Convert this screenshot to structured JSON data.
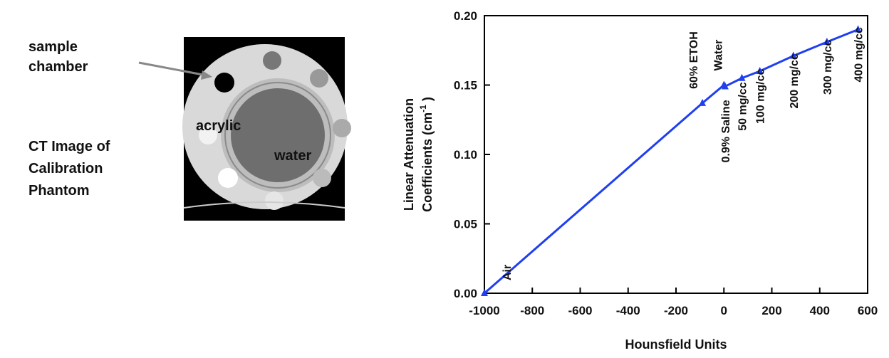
{
  "figure": {
    "callout": [
      "sample",
      "chamber"
    ],
    "caption": [
      "CT Image of",
      "Calibration",
      "Phantom"
    ],
    "image_labels": [
      "acrylic",
      "water"
    ]
  },
  "chart_data": {
    "type": "line",
    "xlabel": "Hounsfield Units",
    "ylabel": [
      "Linear Attenuation",
      "Coefficients (cm"
    ],
    "ylabel_superscript": "-1",
    "ylabel_end": " )",
    "xlim": [
      -1000,
      600
    ],
    "ylim": [
      0,
      0.2
    ],
    "xticks": [
      -1000,
      -800,
      -600,
      -400,
      -200,
      0,
      200,
      400,
      600
    ],
    "yticks": [
      {
        "value": 0,
        "label": "0.00"
      },
      {
        "value": 0.05,
        "label": "0.05"
      },
      {
        "value": 0.1,
        "label": "0.10"
      },
      {
        "value": 0.15,
        "label": "0.15"
      },
      {
        "value": 0.2,
        "label": "0.20"
      }
    ],
    "series": [
      {
        "color": "#1f3ff0",
        "x": [
          -1000,
          -90,
          0,
          5,
          75,
          150,
          290,
          430,
          560
        ],
        "values": [
          0,
          0.137,
          0.15,
          0.149,
          0.155,
          0.16,
          0.171,
          0.181,
          0.19
        ],
        "point_labels": [
          "Air",
          "60% ETOH",
          "Water",
          "0.9% Saline",
          "50 mg/cc",
          "100 mg/cc",
          "200 mg/cc",
          "300 mg/cc",
          "400 mg/cc"
        ]
      }
    ]
  }
}
